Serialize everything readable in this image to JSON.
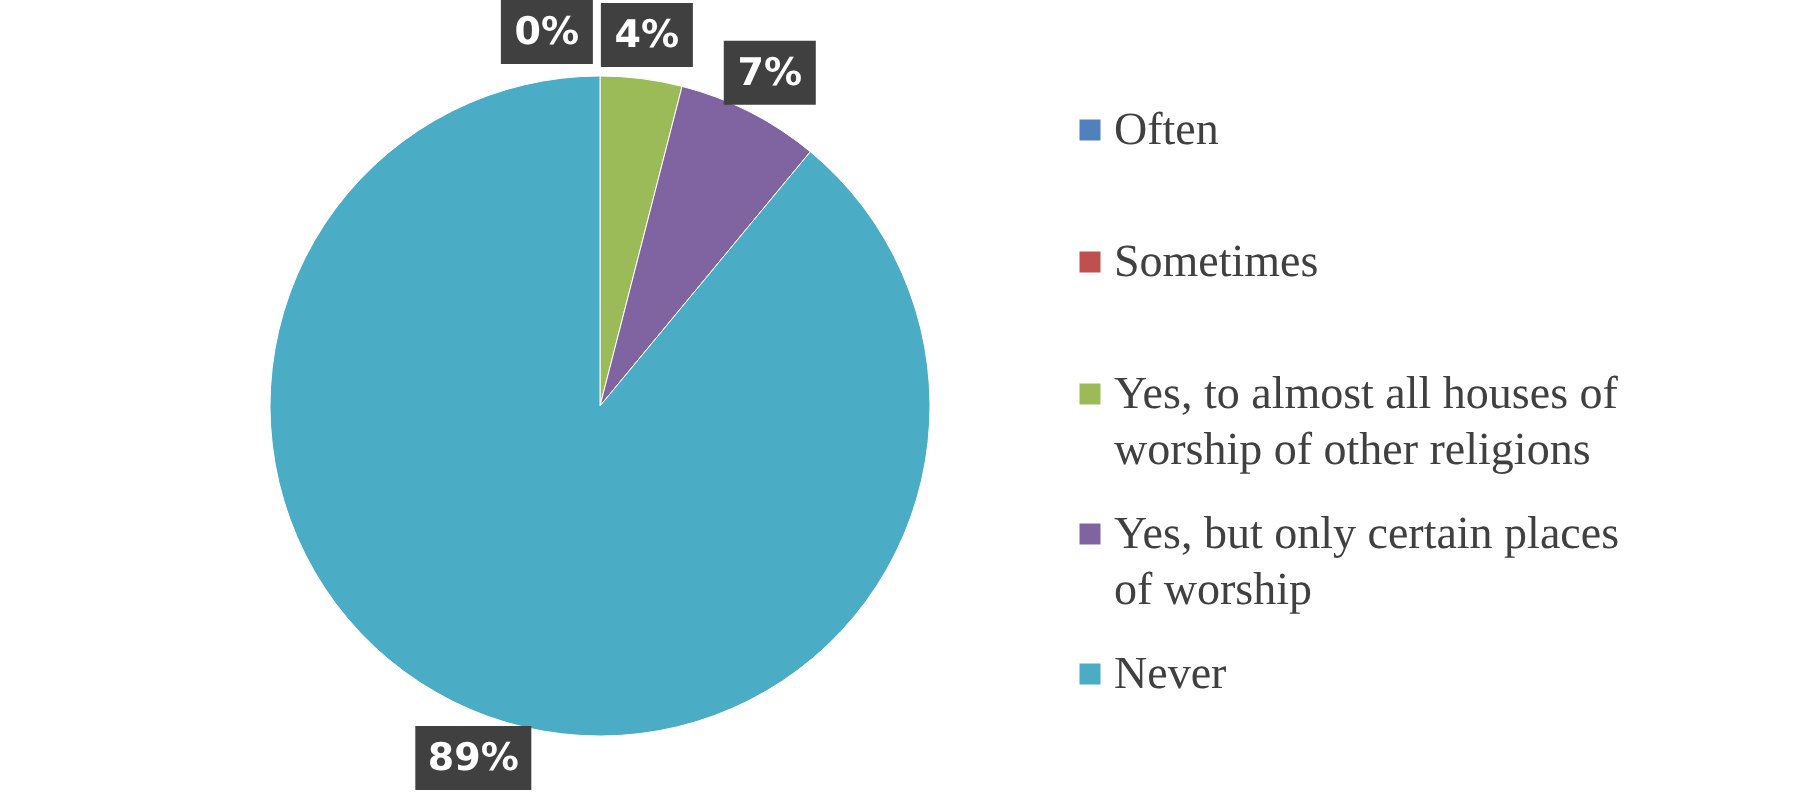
{
  "chart_data": {
    "type": "pie",
    "categories": [
      "Often",
      "Sometimes",
      "Yes, to almost all houses of worship of other religions",
      "Yes, but only certain places of worship",
      "Never"
    ],
    "values": [
      0,
      0,
      4,
      7,
      89
    ],
    "colors": [
      "#4f81bd",
      "#c0504d",
      "#9bbb59",
      "#8064a2",
      "#4bacc6"
    ],
    "value_labels": [
      "0%",
      null,
      "4%",
      "7%",
      "89%"
    ],
    "legend": "right"
  }
}
